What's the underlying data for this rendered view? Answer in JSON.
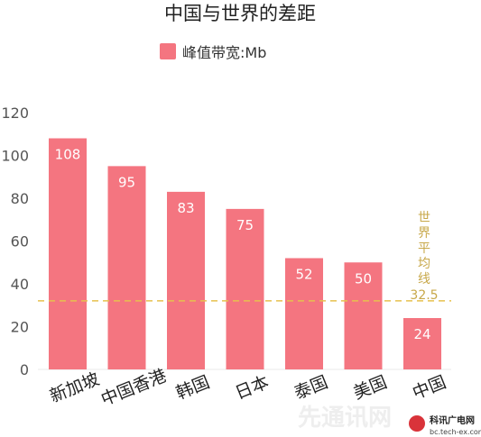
{
  "chart_data": {
    "type": "bar",
    "title": "中国与世界的差距",
    "legend": {
      "label": "峰值带宽:Mb",
      "placement": "top-center"
    },
    "categories": [
      "新加坡",
      "中国香港",
      "韩国",
      "日本",
      "泰国",
      "美国",
      "中国"
    ],
    "series": [
      {
        "name": "峰值带宽:Mb",
        "values": [
          108,
          95,
          83,
          75,
          52,
          50,
          24
        ]
      }
    ],
    "reference_line": {
      "value": 32.5,
      "label_lines": [
        "世",
        "界",
        "平",
        "均",
        "线"
      ],
      "value_label": "32.5"
    },
    "ylim": [
      0,
      120
    ],
    "yticks": [
      "0",
      "20",
      "40",
      "60",
      "80",
      "100",
      "120"
    ],
    "grid": false,
    "colors": {
      "bar": "#f47580",
      "reference": "#e6c04e",
      "reference_text": "#c8a84a",
      "axis_text": "#555555",
      "title_text": "#222222"
    }
  },
  "watermarks": {
    "center": "先通讯网",
    "logo_line1": "科讯广电网",
    "logo_line2": "bc.tech-ex.com"
  }
}
